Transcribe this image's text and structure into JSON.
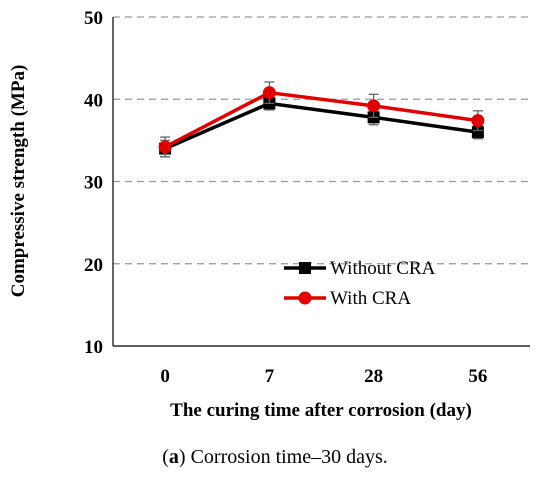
{
  "chart_data": {
    "type": "line",
    "categories": [
      "0",
      "7",
      "28",
      "56"
    ],
    "yticks": [
      10,
      20,
      30,
      40,
      50
    ],
    "ylim": [
      10,
      50
    ],
    "ylabel": "Compressive strength (MPa)",
    "xlabel": "The curing time after corrosion (day)",
    "grid": "horizontal-dashed",
    "legend_position": "lower-right",
    "series": [
      {
        "name": "Without CRA",
        "color": "#000000",
        "marker": "square",
        "values": [
          34.0,
          39.5,
          37.8,
          36.0
        ],
        "errors": [
          1.0,
          0.8,
          0.9,
          0.8
        ]
      },
      {
        "name": "With CRA",
        "color": "#e00000",
        "marker": "circle",
        "values": [
          34.2,
          40.8,
          39.2,
          37.4
        ],
        "errors": [
          1.2,
          1.3,
          1.4,
          1.2
        ]
      }
    ]
  },
  "caption": {
    "letter": "a",
    "text": " Corrosion time–30 days."
  }
}
